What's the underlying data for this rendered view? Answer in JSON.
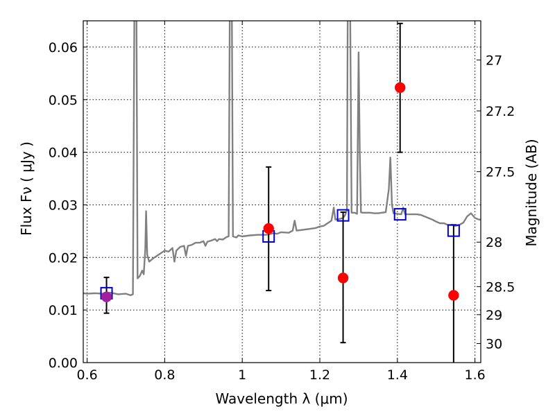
{
  "chart_data": {
    "type": "scatter",
    "xlabel": "Wavelength  λ (μm)",
    "ylabel": "Flux  Fν  ( μJy )",
    "y2label": "Magnitude (AB)",
    "xlim": [
      0.59,
      1.615
    ],
    "ylim": [
      0.0,
      0.065
    ],
    "grid": true,
    "grid_style": "dotted",
    "x_ticks": [
      0.6,
      0.8,
      1.0,
      1.2,
      1.4,
      1.6
    ],
    "x_tick_labels": [
      "0.6",
      "0.8",
      "1",
      "1.2",
      "1.4",
      "1.6"
    ],
    "y_ticks": [
      0.0,
      0.01,
      0.02,
      0.03,
      0.04,
      0.05,
      0.06
    ],
    "y_tick_labels": [
      "0.00",
      "0.01",
      "0.02",
      "0.03",
      "0.04",
      "0.05",
      "0.06"
    ],
    "y2_ticks": [
      27.0,
      27.2,
      27.5,
      28.0,
      28.5,
      29.0,
      30.0
    ],
    "y2_tick_labels": [
      "27",
      "27.2",
      "27.5",
      "28",
      "28.5",
      "29",
      "30"
    ],
    "colors": {
      "model": "#808080",
      "observed": "#ff0000",
      "synthetic": "#0000cc",
      "errorbar": "#000000",
      "grid": "#000000"
    },
    "series": [
      {
        "style": "line",
        "points": [
          [
            0.59,
            0.0132
          ],
          [
            0.6,
            0.0131
          ],
          [
            0.62,
            0.0132
          ],
          [
            0.64,
            0.0131
          ],
          [
            0.66,
            0.0133
          ],
          [
            0.68,
            0.013
          ],
          [
            0.7,
            0.0131
          ],
          [
            0.712,
            0.0128
          ],
          [
            0.718,
            0.013
          ],
          [
            0.722,
            0.07
          ],
          [
            0.727,
            0.07
          ],
          [
            0.73,
            0.016
          ],
          [
            0.736,
            0.0165
          ],
          [
            0.742,
            0.0175
          ],
          [
            0.746,
            0.0168
          ],
          [
            0.75,
            0.0215
          ],
          [
            0.752,
            0.0288
          ],
          [
            0.755,
            0.0205
          ],
          [
            0.76,
            0.0192
          ],
          [
            0.77,
            0.0198
          ],
          [
            0.78,
            0.0203
          ],
          [
            0.79,
            0.0208
          ],
          [
            0.8,
            0.0213
          ],
          [
            0.81,
            0.0211
          ],
          [
            0.82,
            0.0218
          ],
          [
            0.825,
            0.0192
          ],
          [
            0.83,
            0.0213
          ],
          [
            0.84,
            0.022
          ],
          [
            0.85,
            0.0222
          ],
          [
            0.855,
            0.0203
          ],
          [
            0.86,
            0.0222
          ],
          [
            0.87,
            0.0224
          ],
          [
            0.88,
            0.0228
          ],
          [
            0.89,
            0.0228
          ],
          [
            0.9,
            0.0231
          ],
          [
            0.905,
            0.0222
          ],
          [
            0.91,
            0.023
          ],
          [
            0.92,
            0.0232
          ],
          [
            0.93,
            0.0235
          ],
          [
            0.935,
            0.0231
          ],
          [
            0.94,
            0.0235
          ],
          [
            0.95,
            0.0234
          ],
          [
            0.96,
            0.0239
          ],
          [
            0.965,
            0.024
          ],
          [
            0.968,
            0.07
          ],
          [
            0.973,
            0.07
          ],
          [
            0.976,
            0.024
          ],
          [
            0.985,
            0.0238
          ],
          [
            0.99,
            0.0242
          ],
          [
            1.0,
            0.024
          ],
          [
            1.02,
            0.0242
          ],
          [
            1.04,
            0.0243
          ],
          [
            1.06,
            0.0243
          ],
          [
            1.07,
            0.0244
          ],
          [
            1.08,
            0.0246
          ],
          [
            1.09,
            0.0245
          ],
          [
            1.1,
            0.0248
          ],
          [
            1.12,
            0.0247
          ],
          [
            1.13,
            0.0251
          ],
          [
            1.135,
            0.027
          ],
          [
            1.14,
            0.0251
          ],
          [
            1.15,
            0.0252
          ],
          [
            1.17,
            0.0254
          ],
          [
            1.19,
            0.0256
          ],
          [
            1.2,
            0.0259
          ],
          [
            1.21,
            0.026
          ],
          [
            1.22,
            0.0265
          ],
          [
            1.23,
            0.027
          ],
          [
            1.236,
            0.0295
          ],
          [
            1.24,
            0.0272
          ],
          [
            1.25,
            0.0273
          ],
          [
            1.26,
            0.0275
          ],
          [
            1.265,
            0.028
          ],
          [
            1.27,
            0.029
          ],
          [
            1.272,
            0.07
          ],
          [
            1.278,
            0.07
          ],
          [
            1.282,
            0.0285
          ],
          [
            1.29,
            0.0285
          ],
          [
            1.296,
            0.0283
          ],
          [
            1.3,
            0.059
          ],
          [
            1.303,
            0.04
          ],
          [
            1.306,
            0.0286
          ],
          [
            1.31,
            0.0285
          ],
          [
            1.32,
            0.0285
          ],
          [
            1.33,
            0.0285
          ],
          [
            1.34,
            0.0284
          ],
          [
            1.35,
            0.0284
          ],
          [
            1.36,
            0.0285
          ],
          [
            1.37,
            0.0286
          ],
          [
            1.378,
            0.033
          ],
          [
            1.382,
            0.039
          ],
          [
            1.386,
            0.03
          ],
          [
            1.39,
            0.0284
          ],
          [
            1.4,
            0.0283
          ],
          [
            1.41,
            0.0282
          ],
          [
            1.415,
            0.0295
          ],
          [
            1.42,
            0.0282
          ],
          [
            1.43,
            0.0282
          ],
          [
            1.44,
            0.0282
          ],
          [
            1.45,
            0.0282
          ],
          [
            1.46,
            0.0281
          ],
          [
            1.47,
            0.0278
          ],
          [
            1.48,
            0.0275
          ],
          [
            1.49,
            0.0272
          ],
          [
            1.5,
            0.0268
          ],
          [
            1.51,
            0.0265
          ],
          [
            1.52,
            0.0265
          ],
          [
            1.53,
            0.0262
          ],
          [
            1.54,
            0.0262
          ],
          [
            1.55,
            0.026
          ],
          [
            1.56,
            0.0262
          ],
          [
            1.57,
            0.0266
          ],
          [
            1.58,
            0.0278
          ],
          [
            1.59,
            0.0284
          ],
          [
            1.6,
            0.0275
          ],
          [
            1.61,
            0.0272
          ],
          [
            1.615,
            0.0272
          ]
        ]
      },
      {
        "style": "markers",
        "marker": "circle",
        "x": [
          0.65,
          1.068,
          1.26,
          1.407,
          1.545
        ],
        "y": [
          0.0125,
          0.0255,
          0.0161,
          0.0523,
          0.0128
        ],
        "yerr_low": [
          0.0094,
          0.0137,
          0.0038,
          0.04,
          0.0
        ],
        "yerr_high": [
          0.0162,
          0.0372,
          0.0286,
          0.0645,
          0.0262
        ]
      },
      {
        "style": "markers",
        "marker": "open-square",
        "x": [
          0.65,
          1.068,
          1.26,
          1.407,
          1.545
        ],
        "y": [
          0.0132,
          0.024,
          0.028,
          0.0282,
          0.0251
        ]
      }
    ]
  }
}
